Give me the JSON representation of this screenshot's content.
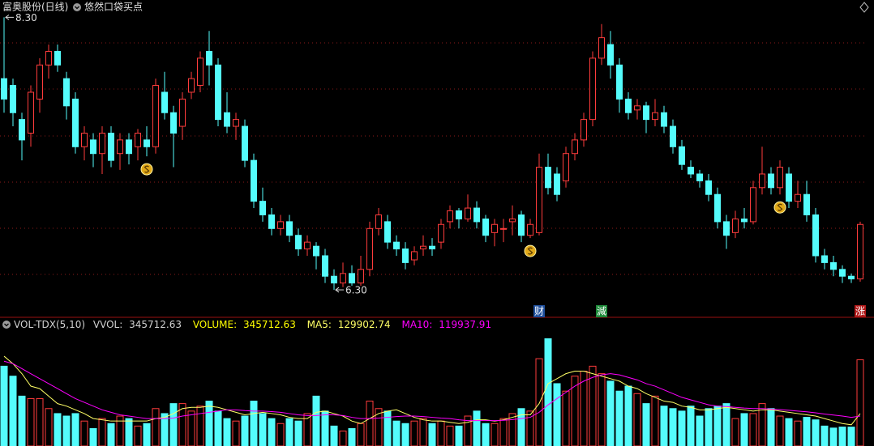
{
  "header": {
    "stock": "富奥股份(日线)",
    "indicator": "悠然口袋买点"
  },
  "chart_data": [
    {
      "type": "candlestick",
      "up_color": "#ff3c3c",
      "down_color": "#54fcfc",
      "ylim": [
        6.14,
        8.32
      ],
      "open": [
        7.85,
        7.8,
        7.55,
        7.45,
        7.7,
        7.95,
        8.05,
        7.85,
        7.7,
        7.35,
        7.4,
        7.3,
        7.45,
        7.3,
        7.4,
        7.35,
        7.4,
        7.35,
        7.75,
        7.6,
        7.5,
        7.75,
        7.8,
        8.05,
        7.95,
        7.6,
        7.5,
        7.5,
        7.25,
        6.95,
        6.85,
        6.75,
        6.8,
        6.7,
        6.6,
        6.62,
        6.55,
        6.4,
        6.35,
        6.42,
        6.35,
        6.45,
        6.75,
        6.8,
        6.65,
        6.6,
        6.52,
        6.6,
        6.62,
        6.65,
        6.8,
        6.88,
        6.82,
        6.9,
        6.82,
        6.72,
        6.75,
        6.8,
        6.85,
        6.7,
        6.72,
        7.2,
        7.15,
        7.1,
        7.3,
        7.4,
        7.55,
        8.0,
        8.1,
        7.95,
        7.7,
        7.62,
        7.65,
        7.55,
        7.6,
        7.5,
        7.35,
        7.2,
        7.15,
        7.1,
        7.0,
        6.8,
        6.72,
        6.82,
        6.8,
        7.05,
        7.15,
        7.05,
        7.15,
        6.95,
        7.0,
        6.85,
        6.55,
        6.5,
        6.45,
        6.4,
        6.38
      ],
      "high": [
        8.3,
        7.85,
        7.6,
        7.8,
        8.0,
        8.1,
        8.1,
        7.9,
        7.75,
        7.5,
        7.45,
        7.5,
        7.5,
        7.45,
        7.45,
        7.48,
        7.5,
        7.85,
        7.9,
        7.65,
        7.75,
        7.9,
        8.05,
        8.2,
        8.0,
        7.75,
        7.6,
        7.55,
        7.3,
        7.05,
        6.9,
        6.85,
        6.85,
        6.75,
        6.7,
        6.65,
        6.6,
        6.45,
        6.5,
        6.48,
        6.55,
        6.8,
        6.9,
        6.85,
        6.7,
        6.65,
        6.62,
        6.7,
        6.68,
        6.82,
        6.92,
        6.9,
        7.0,
        6.95,
        6.85,
        6.82,
        6.82,
        6.92,
        6.88,
        6.82,
        7.3,
        7.3,
        7.2,
        7.35,
        7.45,
        7.6,
        8.05,
        8.25,
        8.2,
        8.0,
        7.75,
        7.7,
        7.68,
        7.7,
        7.65,
        7.55,
        7.4,
        7.25,
        7.18,
        7.15,
        7.05,
        6.85,
        6.88,
        6.9,
        7.1,
        7.35,
        7.2,
        7.25,
        7.2,
        7.1,
        7.1,
        6.9,
        6.6,
        6.55,
        6.48,
        6.42,
        6.8
      ],
      "low": [
        7.6,
        7.5,
        7.25,
        7.35,
        7.6,
        7.85,
        7.9,
        7.55,
        7.3,
        7.25,
        7.2,
        7.15,
        7.2,
        7.18,
        7.22,
        7.25,
        7.28,
        7.3,
        7.55,
        7.2,
        7.4,
        7.7,
        7.75,
        7.8,
        7.5,
        7.45,
        7.4,
        7.2,
        6.9,
        6.8,
        6.7,
        6.7,
        6.65,
        6.55,
        6.55,
        6.45,
        6.35,
        6.3,
        6.32,
        6.33,
        6.33,
        6.4,
        6.7,
        6.6,
        6.55,
        6.45,
        6.48,
        6.55,
        6.55,
        6.6,
        6.75,
        6.75,
        6.8,
        6.75,
        6.65,
        6.62,
        6.65,
        6.7,
        6.65,
        6.68,
        6.7,
        7.0,
        6.95,
        7.05,
        7.25,
        7.35,
        7.5,
        7.95,
        7.85,
        7.6,
        7.55,
        7.55,
        7.45,
        7.5,
        7.45,
        7.3,
        7.18,
        7.12,
        7.05,
        6.95,
        6.75,
        6.6,
        6.68,
        6.75,
        6.78,
        7.0,
        7.0,
        7.0,
        6.9,
        6.9,
        6.8,
        6.5,
        6.45,
        6.4,
        6.35,
        6.35,
        6.36
      ],
      "close": [
        7.7,
        7.6,
        7.4,
        7.75,
        7.95,
        8.05,
        7.95,
        7.65,
        7.35,
        7.45,
        7.3,
        7.45,
        7.25,
        7.4,
        7.3,
        7.45,
        7.35,
        7.8,
        7.6,
        7.45,
        7.7,
        7.85,
        8.0,
        7.95,
        7.55,
        7.5,
        7.55,
        7.25,
        6.95,
        6.85,
        6.75,
        6.8,
        6.7,
        6.6,
        6.65,
        6.55,
        6.4,
        6.35,
        6.42,
        6.35,
        6.45,
        6.75,
        6.85,
        6.65,
        6.6,
        6.5,
        6.58,
        6.62,
        6.6,
        6.78,
        6.88,
        6.82,
        6.9,
        6.8,
        6.7,
        6.78,
        6.75,
        6.82,
        6.7,
        6.78,
        7.2,
        7.05,
        7.0,
        7.3,
        7.4,
        7.55,
        8.0,
        8.15,
        7.95,
        7.7,
        7.6,
        7.65,
        7.55,
        7.6,
        7.5,
        7.35,
        7.22,
        7.15,
        7.1,
        7.0,
        6.8,
        6.7,
        6.82,
        6.8,
        7.05,
        7.15,
        7.05,
        7.2,
        6.95,
        7.0,
        6.85,
        6.55,
        6.5,
        6.45,
        6.4,
        6.38,
        6.78
      ],
      "extreme_labels": [
        {
          "index": 0,
          "value": 8.3,
          "label": "8.30"
        },
        {
          "index": 37,
          "value": 6.3,
          "label": "6.30"
        }
      ],
      "buy_signals": [
        16,
        59,
        87
      ],
      "annotations": [
        {
          "index": 60,
          "text": "财",
          "color": "#1f4f9c"
        },
        {
          "index": 67,
          "text": "減",
          "color": "#1e8a3a"
        },
        {
          "index": 96,
          "text": "涨",
          "color": "#b01818"
        }
      ]
    },
    {
      "type": "volume",
      "title": "VOL-TDX(5,10)",
      "vvol_label": "VVOL:",
      "ylim": [
        0,
        490000
      ],
      "series": [
        {
          "name": "VOLUME:",
          "color": "#ffff00",
          "values": [
            320000,
            280000,
            200000,
            190000,
            190000,
            150000,
            130000,
            120000,
            130000,
            100000,
            70000,
            110000,
            90000,
            120000,
            110000,
            80000,
            90000,
            150000,
            130000,
            170000,
            170000,
            140000,
            160000,
            180000,
            140000,
            110000,
            100000,
            120000,
            180000,
            130000,
            110000,
            90000,
            110000,
            100000,
            130000,
            200000,
            140000,
            80000,
            60000,
            70000,
            90000,
            180000,
            150000,
            140000,
            100000,
            90000,
            100000,
            110000,
            90000,
            100000,
            80000,
            80000,
            120000,
            140000,
            90000,
            90000,
            110000,
            130000,
            150000,
            140000,
            350000,
            430000,
            250000,
            220000,
            280000,
            300000,
            320000,
            290000,
            260000,
            220000,
            240000,
            210000,
            170000,
            200000,
            160000,
            150000,
            140000,
            160000,
            120000,
            150000,
            160000,
            170000,
            110000,
            130000,
            130000,
            170000,
            150000,
            120000,
            110000,
            100000,
            115000,
            104865.4,
            80000,
            72000,
            76000,
            75801.07,
            345712.63
          ]
        },
        {
          "name": "MA5:",
          "color": "#ffff66",
          "values": [
            360000,
            330000,
            290000,
            240000,
            230000,
            200000,
            170000,
            160000,
            145000,
            130000,
            110000,
            105000,
            100000,
            100000,
            100000,
            100000,
            100000,
            110000,
            115000,
            130000,
            150000,
            155000,
            155000,
            160000,
            155000,
            145000,
            135000,
            125000,
            130000,
            135000,
            130000,
            125000,
            115000,
            110000,
            110000,
            135000,
            140000,
            130000,
            120000,
            100000,
            90000,
            110000,
            130000,
            140000,
            145000,
            130000,
            115000,
            105000,
            100000,
            100000,
            95000,
            90000,
            95000,
            105000,
            105000,
            100000,
            105000,
            115000,
            125000,
            125000,
            170000,
            250000,
            270000,
            290000,
            300000,
            300000,
            290000,
            280000,
            270000,
            260000,
            240000,
            230000,
            210000,
            195000,
            180000,
            175000,
            160000,
            155000,
            145000,
            145000,
            150000,
            155000,
            150000,
            145000,
            140000,
            145000,
            145000,
            140000,
            135000,
            130000,
            125000,
            120000,
            110000,
            100000,
            90000,
            85000,
            129902.74
          ]
        },
        {
          "name": "MA10:",
          "color": "#ff00ff",
          "values": [
            340000,
            330000,
            310000,
            290000,
            270000,
            250000,
            230000,
            210000,
            190000,
            175000,
            160000,
            145000,
            135000,
            125000,
            120000,
            115000,
            110000,
            110000,
            110000,
            112000,
            120000,
            125000,
            130000,
            135000,
            140000,
            145000,
            145000,
            142000,
            140000,
            140000,
            138000,
            135000,
            130000,
            125000,
            122000,
            122000,
            125000,
            125000,
            122000,
            115000,
            110000,
            110000,
            112000,
            115000,
            118000,
            120000,
            120000,
            118000,
            115000,
            112000,
            110000,
            105000,
            102000,
            102000,
            102000,
            102000,
            103000,
            106000,
            110000,
            115000,
            135000,
            165000,
            190000,
            215000,
            240000,
            260000,
            275000,
            285000,
            290000,
            285000,
            275000,
            265000,
            250000,
            240000,
            225000,
            210000,
            195000,
            185000,
            175000,
            165000,
            160000,
            158000,
            155000,
            152000,
            150000,
            150000,
            148000,
            146000,
            143000,
            140000,
            137000,
            133000,
            128000,
            124000,
            120000,
            115000,
            119937.91
          ]
        }
      ]
    }
  ]
}
